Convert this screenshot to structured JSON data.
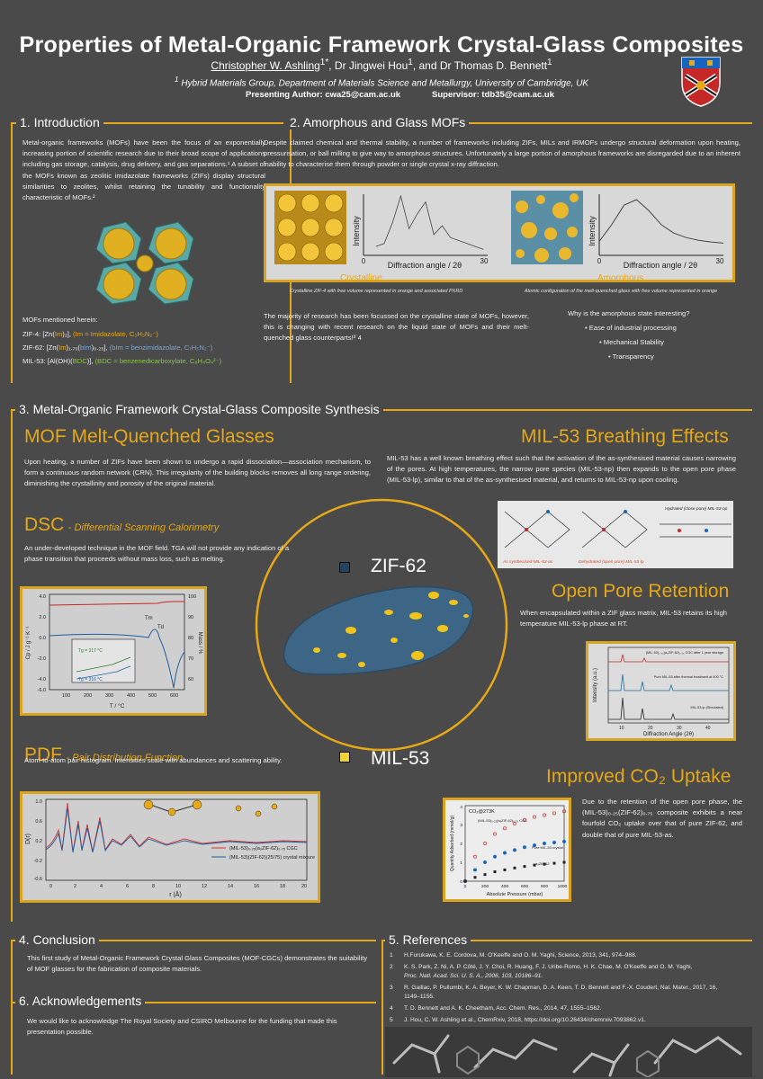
{
  "header": {
    "title": "Properties of Metal-Organic Framework Crystal-Glass Composites",
    "author1": "Christopher W. Ashling",
    "author1_sup": "1*",
    "authors_rest": ", Dr Jingwei Hou",
    "author2_sup": "1",
    "authors_tail": ", and Dr Thomas D. Bennett",
    "author3_sup": "1",
    "affiliation_sup": "1",
    "affiliation": "Hybrid Materials Group, Department of Materials Science and Metallurgy, University of Cambridge, UK",
    "presenting": "Presenting Author: cwa25@cam.ac.uk",
    "supervisor": "Supervisor: tdb35@cam.ac.uk"
  },
  "intro": {
    "heading": "1. Introduction",
    "body": "Metal-organic frameworks (MOFs) have been the focus of an exponentially increasing portion of scientific research due to their broad scope of applications including gas storage, catalysis, drug delivery, and gas separations.¹ A subset of the MOFs known as zeolitic imidazolate frameworks (ZIFs) display structural similarities to zeolites, whilst retaining the tunability and functionality characteristic of MOFs.²",
    "mofs_label": "MOFs mentioned herein:",
    "zif4_a": "ZIF-4: [Zn(",
    "zif4_b": "Im",
    "zif4_c": ")₂], ",
    "zif4_d": "(Im = Imidazolate, C₃H₃N₂⁻)",
    "zif62_a": "ZIF-62: [Zn(",
    "zif62_b": "Im",
    "zif62_c": ")₁.₇₅(",
    "zif62_d": "bIm",
    "zif62_e": ")₀.₂₅], ",
    "zif62_f": "(bIm = benzimidazolate, C₇H₅N₂⁻)",
    "mil53_a": "MIL-53: [Al(OH)(",
    "mil53_b": "BDC",
    "mil53_c": ")], ",
    "mil53_d": "(BDC = benzenedicarboxylate, C₈H₄O₄²⁻)"
  },
  "amorphous": {
    "heading": "2. Amorphous and Glass MOFs",
    "body": "Despite claimed chemical and thermal stability, a number of frameworks including ZIFs, MILs and IRMOFs undergo structural deformation upon heating, pressurisation, or ball milling to give way to amorphous structures. Unfortunately a large portion of amorphous frameworks are disregarded due to an inherent inability to characterise them through powder or single crystal x-ray diffraction.",
    "crystalline_label": "Crystalline",
    "amorphous_label": "Amorphous",
    "crystalline_caption": "Crystalline ZIF-4 with free volume represented in orange and associated PXRD",
    "amorphous_caption": "Atomic configuration of the melt-quenched glass with free volume represented in orange",
    "plot_ylabel": "Intensity",
    "plot_xlabel": "Diffraction angle / 2θ",
    "plot_x0": "0",
    "plot_x30": "30",
    "body2": "The majority of research has been focussed on the crystalline state of MOFs, however, this is changing with recent research on the liquid state of MOFs and their melt-quenched glass counterparts!³˙4",
    "why": "Why is the amorphous state interesting?",
    "bullets": [
      "Ease of industrial processing",
      "Mechanical Stability",
      "Transparency"
    ]
  },
  "synthesis": {
    "heading": "3. Metal-Organic Framework Crystal-Glass Composite Synthesis",
    "mq_title": "MOF Melt-Quenched Glasses",
    "mq_body": "Upon heating, a number of ZIFs have been shown to undergo a rapid dissociation—association mechanism, to form a continuous random network (CRN). This irregularity of the building blocks removes all long range ordering, diminishing the crystallinity and porosity of the original material.",
    "dsc_title": "DSC",
    "dsc_sub": "Differential Scanning Calorimetry",
    "dsc_body": "An under-developed technique in the MOF field. TGA will not provide any indication of a phase transition that proceeds without mass loss, such as melting.",
    "pdf_title": "PDF",
    "pdf_sub": "Pair Distribution Function",
    "pdf_body": "Atom-to-atom pair histogram. Intensities scale with abundances and scattering ability.",
    "zif62_label": "ZIF-62",
    "mil53_label": "MIL-53",
    "breath_title": "MIL-53 Breathing Effects",
    "breath_body": "MIL-53 has a well known breathing effect such that the activation of the as-synthesised material causes narrowing of the pores. At high temperatures, the narrow pore species (MIL-53-np) then expands to the open pore phase (MIL-53-lp), similar to that of the as-synthesised material, and returns to MIL-53-np upon cooling.",
    "open_title": "Open Pore Retention",
    "open_body": "When encapsulated within a ZIF glass matrix, MIL-53 retains its high temperature MIL-53-lp phase at RT.",
    "co2_title": "Improved CO₂ Uptake",
    "co2_body": "Due to the retention of the open pore phase, the (MIL-53)₀.₂₅(ZIF-62)₀.₇₅ composite exhibits a near fourfold CO₂ uptake over that of pure ZIF-62, and double that of pure MIL-53-as.",
    "dsc_y": "Cp / J g⁻¹ K⁻¹",
    "dsc_y2": "Mass / %",
    "dsc_x": "T / °C",
    "dsc_tm": "Tm",
    "dsc_td": "Td",
    "dsc_tg1": "Tg = 317 °C",
    "dsc_tg2": "Tg = 316 °C",
    "pdf_x": "r (Å)",
    "pdf_y": "D(r)",
    "pdf_leg1": "(MIL-53)₀.₂₅(a₉ZIF-62)₀.₇₅ CGC",
    "pdf_leg2": "(MIL-53)(ZIF-62)(25/75) crystal mixture",
    "breath_leg1": "As synthesised MIL-53-as",
    "breath_leg2": "Dehydrated (open pore) MIL-53-lp",
    "breath_leg3": "Hydrated (close pore) MIL-53-np",
    "open_x": "Diffraction Angle (2θ)",
    "open_y": "Intensity (a.u.)",
    "open_l1": "(MIL-53)₀.₂₅(a₉ZIF-62)₀.₇₅ CGC after 1 year storage",
    "open_l2": "Pure MIL-53 after thermal treatment at 400 °C",
    "open_l3": "MIL-53-lp (Simulated)",
    "co2_x": "Absolute Pressure (mbar)",
    "co2_y": "Quantity Adsorbed (mmol/g)",
    "co2_temp": "CO₂@273K",
    "co2_l1": "(MIL-53)₀.₂₅(a₉ZIF-62)₀.₇₅ CGC",
    "co2_l2": "Pure MIL-53 crystal",
    "co2_l3": "a₉ZIF-62"
  },
  "conclusion": {
    "heading": "4. Conclusion",
    "body": "This first study of Metal-Organic Framework Crystal Glass Composites (MOF-CGCs) demonstrates the suitability of MOF glasses for the fabrication of composite materials."
  },
  "ack": {
    "heading": "6. Acknowledgements",
    "body": "We would like to acknowledge The Royal Society and CSIRO Melbourne for the funding that made this presentation possible."
  },
  "refs": {
    "heading": "5. References",
    "items": [
      {
        "n": "1",
        "t": "H.Furukawa, K. E. Cordova, M. O'Keeffe and O. M. Yaghi, Science, 2013, 341, 974–988."
      },
      {
        "n": "2",
        "t": "K. S. Park, Z. Ni, A. P. Côté, J. Y. Choi, R. Huang, F. J. Uribe-Romo, H. K. Chae, M. O'Keeffe and O. M. Yaghi,",
        "t2": "Proc. Natl. Acad. Sci. U. S. A., 2006, 103, 10186–91."
      },
      {
        "n": "3",
        "t": "R. Gaillac, P. Pullumbi, K. A. Beyer, K. W. Chapman, D. A. Keen, T. D. Bennett and F.-X. Coudert, Nat. Mater., 2017, 16,",
        "t2": "1149–1155."
      },
      {
        "n": "4",
        "t": "T. D. Bennett and A. K. Cheetham, Acc. Chem. Res., 2014, 47, 1555–1562."
      },
      {
        "n": "5",
        "t": "J. Hou, C. W. Ashling et al., ChemRxiv, 2018, https://doi.org/10.26434/chemrxiv.7093862.v1."
      }
    ]
  },
  "chart_data": [
    {
      "type": "line",
      "title": "PXRD crystalline ZIF-4",
      "xlabel": "Diffraction angle / 2θ",
      "ylabel": "Intensity",
      "xlim": [
        0,
        30
      ],
      "x": [
        3,
        5,
        7,
        9,
        11,
        13,
        15,
        17,
        19,
        21,
        23,
        25,
        27,
        29
      ],
      "values": [
        0.15,
        0.2,
        0.55,
        1.0,
        0.45,
        0.7,
        0.9,
        0.35,
        0.5,
        0.3,
        0.25,
        0.2,
        0.15,
        0.1
      ]
    },
    {
      "type": "line",
      "title": "PXRD amorphous ZIF-4 glass",
      "xlabel": "Diffraction angle / 2θ",
      "ylabel": "Intensity",
      "xlim": [
        0,
        30
      ],
      "x": [
        0,
        3,
        6,
        9,
        12,
        15,
        18,
        21,
        24,
        27,
        30
      ],
      "values": [
        0.25,
        0.55,
        0.9,
        1.0,
        0.8,
        0.55,
        0.4,
        0.32,
        0.27,
        0.24,
        0.22
      ]
    },
    {
      "type": "line",
      "title": "CO2 uptake at 273K",
      "xlabel": "Absolute Pressure (mbar)",
      "ylabel": "Quantity Adsorbed (mmol/g)",
      "xlim": [
        0,
        1000
      ],
      "ylim": [
        0,
        4
      ],
      "x": [
        0,
        100,
        200,
        300,
        400,
        500,
        600,
        700,
        800,
        900,
        1000
      ],
      "series": [
        {
          "name": "(MIL-53)0.25(agZIF-62)0.75 CGC",
          "values": [
            0,
            1.3,
            2.0,
            2.5,
            2.8,
            3.05,
            3.25,
            3.4,
            3.5,
            3.6,
            3.7
          ]
        },
        {
          "name": "Pure MIL-53 crystal",
          "values": [
            0,
            0.6,
            1.0,
            1.3,
            1.5,
            1.65,
            1.8,
            1.9,
            2.0,
            2.05,
            2.1
          ]
        },
        {
          "name": "agZIF-62",
          "values": [
            0,
            0.2,
            0.35,
            0.5,
            0.6,
            0.7,
            0.78,
            0.85,
            0.9,
            0.95,
            1.0
          ]
        }
      ]
    }
  ]
}
